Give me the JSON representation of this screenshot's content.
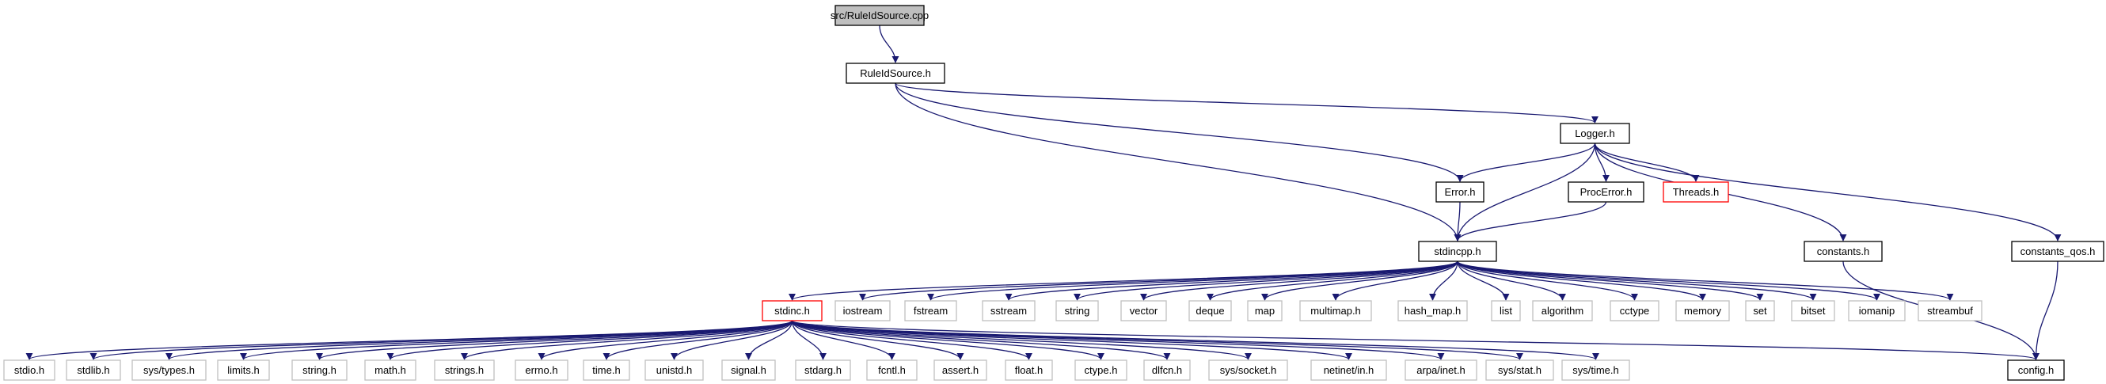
{
  "graph": {
    "nodes": [
      {
        "id": "root",
        "label": "src/RuleIdSource.cpp",
        "style": "root"
      },
      {
        "id": "ruleid",
        "label": "RuleIdSource.h",
        "style": "documented"
      },
      {
        "id": "logger",
        "label": "Logger.h",
        "style": "documented"
      },
      {
        "id": "error",
        "label": "Error.h",
        "style": "documented"
      },
      {
        "id": "procerror",
        "label": "ProcError.h",
        "style": "documented"
      },
      {
        "id": "threads",
        "label": "Threads.h",
        "style": "truncated"
      },
      {
        "id": "constants",
        "label": "constants.h",
        "style": "documented"
      },
      {
        "id": "constants_qos",
        "label": "constants_qos.h",
        "style": "documented"
      },
      {
        "id": "stdincpp",
        "label": "stdincpp.h",
        "style": "documented"
      },
      {
        "id": "stdinc",
        "label": "stdinc.h",
        "style": "truncated"
      },
      {
        "id": "iostream",
        "label": "iostream",
        "style": "external"
      },
      {
        "id": "fstream",
        "label": "fstream",
        "style": "external"
      },
      {
        "id": "sstream",
        "label": "sstream",
        "style": "external"
      },
      {
        "id": "string",
        "label": "string",
        "style": "external"
      },
      {
        "id": "vector",
        "label": "vector",
        "style": "external"
      },
      {
        "id": "deque",
        "label": "deque",
        "style": "external"
      },
      {
        "id": "map",
        "label": "map",
        "style": "external"
      },
      {
        "id": "multimap",
        "label": "multimap.h",
        "style": "external"
      },
      {
        "id": "hash_map",
        "label": "hash_map.h",
        "style": "external"
      },
      {
        "id": "list",
        "label": "list",
        "style": "external"
      },
      {
        "id": "algorithm",
        "label": "algorithm",
        "style": "external"
      },
      {
        "id": "cctype",
        "label": "cctype",
        "style": "external"
      },
      {
        "id": "memory",
        "label": "memory",
        "style": "external"
      },
      {
        "id": "set",
        "label": "set",
        "style": "external"
      },
      {
        "id": "bitset",
        "label": "bitset",
        "style": "external"
      },
      {
        "id": "iomanip",
        "label": "iomanip",
        "style": "external"
      },
      {
        "id": "streambuf",
        "label": "streambuf",
        "style": "external"
      },
      {
        "id": "stdio",
        "label": "stdio.h",
        "style": "external"
      },
      {
        "id": "stdlib",
        "label": "stdlib.h",
        "style": "external"
      },
      {
        "id": "systypes",
        "label": "sys/types.h",
        "style": "external"
      },
      {
        "id": "limits",
        "label": "limits.h",
        "style": "external"
      },
      {
        "id": "stringh",
        "label": "string.h",
        "style": "external"
      },
      {
        "id": "math",
        "label": "math.h",
        "style": "external"
      },
      {
        "id": "strings",
        "label": "strings.h",
        "style": "external"
      },
      {
        "id": "errno",
        "label": "errno.h",
        "style": "external"
      },
      {
        "id": "time",
        "label": "time.h",
        "style": "external"
      },
      {
        "id": "unistd",
        "label": "unistd.h",
        "style": "external"
      },
      {
        "id": "signal",
        "label": "signal.h",
        "style": "external"
      },
      {
        "id": "stdarg",
        "label": "stdarg.h",
        "style": "external"
      },
      {
        "id": "fcntl",
        "label": "fcntl.h",
        "style": "external"
      },
      {
        "id": "assert",
        "label": "assert.h",
        "style": "external"
      },
      {
        "id": "float",
        "label": "float.h",
        "style": "external"
      },
      {
        "id": "ctypeh",
        "label": "ctype.h",
        "style": "external"
      },
      {
        "id": "dlfcn",
        "label": "dlfcn.h",
        "style": "external"
      },
      {
        "id": "syssocket",
        "label": "sys/socket.h",
        "style": "external"
      },
      {
        "id": "netinet",
        "label": "netinet/in.h",
        "style": "external"
      },
      {
        "id": "arpainet",
        "label": "arpa/inet.h",
        "style": "external"
      },
      {
        "id": "sysstat",
        "label": "sys/stat.h",
        "style": "external"
      },
      {
        "id": "systime",
        "label": "sys/time.h",
        "style": "external"
      },
      {
        "id": "config",
        "label": "config.h",
        "style": "documented"
      }
    ],
    "edges": [
      [
        "root",
        "ruleid"
      ],
      [
        "ruleid",
        "logger"
      ],
      [
        "ruleid",
        "error"
      ],
      [
        "ruleid",
        "stdincpp"
      ],
      [
        "logger",
        "error"
      ],
      [
        "logger",
        "procerror"
      ],
      [
        "logger",
        "threads"
      ],
      [
        "logger",
        "constants"
      ],
      [
        "logger",
        "constants_qos"
      ],
      [
        "logger",
        "stdincpp"
      ],
      [
        "error",
        "stdincpp"
      ],
      [
        "procerror",
        "stdincpp"
      ],
      [
        "constants",
        "config"
      ],
      [
        "constants_qos",
        "config"
      ],
      [
        "stdincpp",
        "stdinc"
      ],
      [
        "stdincpp",
        "iostream"
      ],
      [
        "stdincpp",
        "fstream"
      ],
      [
        "stdincpp",
        "sstream"
      ],
      [
        "stdincpp",
        "string"
      ],
      [
        "stdincpp",
        "vector"
      ],
      [
        "stdincpp",
        "deque"
      ],
      [
        "stdincpp",
        "map"
      ],
      [
        "stdincpp",
        "multimap"
      ],
      [
        "stdincpp",
        "hash_map"
      ],
      [
        "stdincpp",
        "list"
      ],
      [
        "stdincpp",
        "algorithm"
      ],
      [
        "stdincpp",
        "cctype"
      ],
      [
        "stdincpp",
        "memory"
      ],
      [
        "stdincpp",
        "set"
      ],
      [
        "stdincpp",
        "bitset"
      ],
      [
        "stdincpp",
        "iomanip"
      ],
      [
        "stdincpp",
        "streambuf"
      ],
      [
        "stdinc",
        "stdio"
      ],
      [
        "stdinc",
        "stdlib"
      ],
      [
        "stdinc",
        "systypes"
      ],
      [
        "stdinc",
        "limits"
      ],
      [
        "stdinc",
        "stringh"
      ],
      [
        "stdinc",
        "math"
      ],
      [
        "stdinc",
        "strings"
      ],
      [
        "stdinc",
        "errno"
      ],
      [
        "stdinc",
        "time"
      ],
      [
        "stdinc",
        "unistd"
      ],
      [
        "stdinc",
        "signal"
      ],
      [
        "stdinc",
        "stdarg"
      ],
      [
        "stdinc",
        "fcntl"
      ],
      [
        "stdinc",
        "assert"
      ],
      [
        "stdinc",
        "float"
      ],
      [
        "stdinc",
        "ctypeh"
      ],
      [
        "stdinc",
        "dlfcn"
      ],
      [
        "stdinc",
        "syssocket"
      ],
      [
        "stdinc",
        "netinet"
      ],
      [
        "stdinc",
        "arpainet"
      ],
      [
        "stdinc",
        "sysstat"
      ],
      [
        "stdinc",
        "systime"
      ],
      [
        "stdinc",
        "config"
      ]
    ],
    "colors": {
      "edge": "#191970",
      "root_fill": "#bfbfbf",
      "documented_border": "#000000",
      "truncated_border": "#ff0000",
      "external_border": "#bfbfbf",
      "external_text": "#000000"
    }
  }
}
